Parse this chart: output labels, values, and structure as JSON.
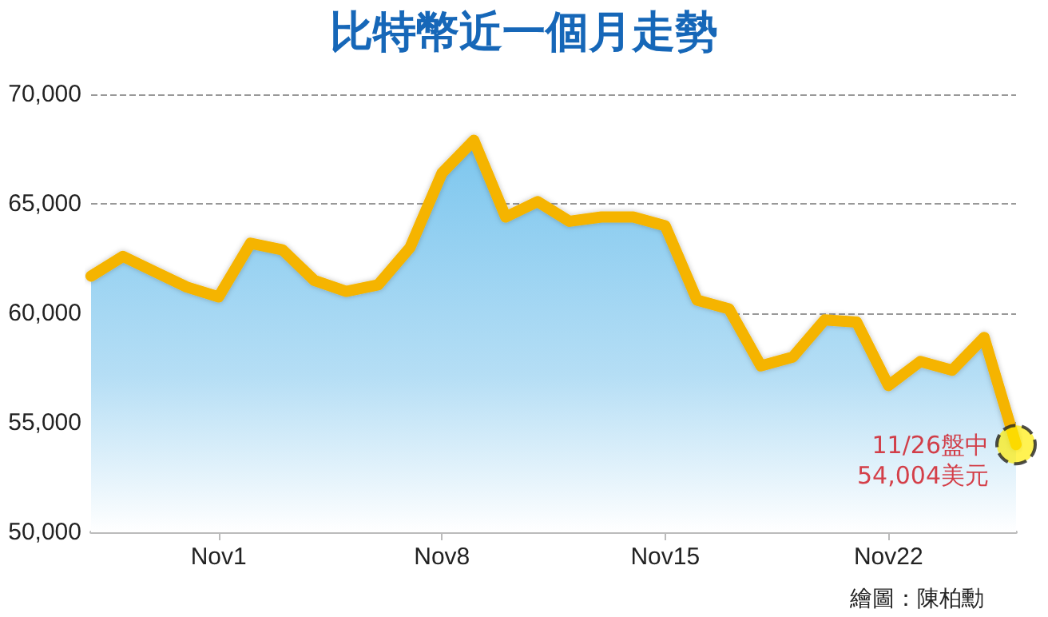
{
  "chart_data": {
    "type": "area",
    "title": "比特幣近一個月走勢",
    "x": [
      "--10-28",
      "--10-29",
      "--10-30",
      "--10-31",
      "--11-01",
      "--11-02",
      "--11-03",
      "--11-04",
      "--11-05",
      "--11-06",
      "--11-07",
      "--11-08",
      "--11-09",
      "--11-10",
      "--11-11",
      "--11-12",
      "--11-13",
      "--11-14",
      "--11-15",
      "--11-16",
      "--11-17",
      "--11-18",
      "--11-19",
      "--11-20",
      "--11-21",
      "--11-22",
      "--11-23",
      "--11-24",
      "--11-25",
      "--11-26"
    ],
    "series": [
      {
        "color": "#f5b400",
        "values": [
          61700,
          62600,
          61900,
          61200,
          60750,
          63200,
          62900,
          61500,
          61000,
          61300,
          63000,
          66400,
          67900,
          64400,
          65100,
          64200,
          64400,
          64400,
          64000,
          60600,
          60200,
          57600,
          58000,
          59700,
          59600,
          56700,
          57800,
          57400,
          58900,
          54004
        ]
      }
    ],
    "xlim": [
      "--10-28",
      "--11-26"
    ],
    "xticks": [
      {
        "value": "--11-01",
        "label": "Nov1"
      },
      {
        "value": "--11-08",
        "label": "Nov8"
      },
      {
        "value": "--11-15",
        "label": "Nov15"
      },
      {
        "value": "--11-22",
        "label": "Nov22"
      }
    ],
    "ylim": [
      50000,
      70000
    ],
    "yticks": [
      {
        "value": 50000,
        "label": "50,000"
      },
      {
        "value": 55000,
        "label": "55,000"
      },
      {
        "value": 60000,
        "label": "60,000"
      },
      {
        "value": 65000,
        "label": "65,000"
      },
      {
        "value": 70000,
        "label": "70,000"
      }
    ],
    "grid": "y",
    "line_style": "solid",
    "annotations": [
      {
        "text": "11/26盤中\n54,004美元",
        "x": "--11-26",
        "y": 54004
      },
      "繪圖：陳柏勳"
    ]
  }
}
